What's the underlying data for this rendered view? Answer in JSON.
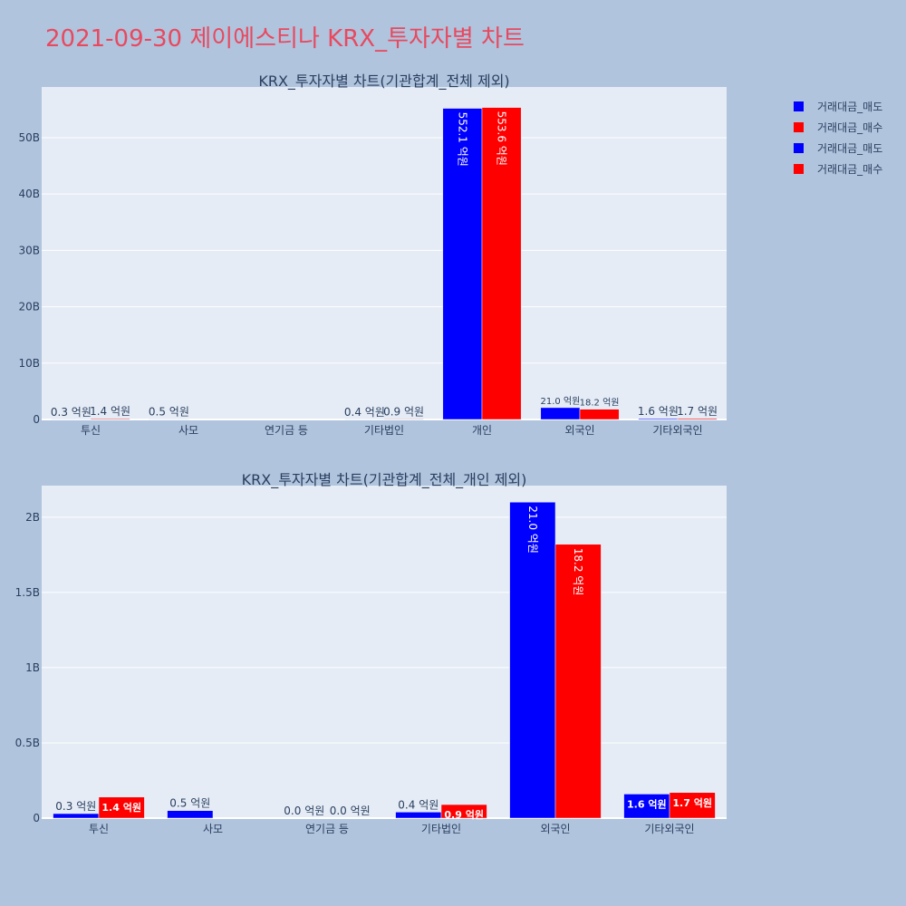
{
  "title": "2021-09-30 제이에스티나 KRX_투자자별 차트",
  "colors": {
    "sell": "#0000ff",
    "buy": "#ff0000",
    "plot_bg": "#e5ecf6",
    "paper_bg": "#b0c4de",
    "title": "#e8495f"
  },
  "legend": [
    {
      "label": "거래대금_매도",
      "color": "#0000ff"
    },
    {
      "label": "거래대금_매수",
      "color": "#ff0000"
    },
    {
      "label": "거래대금_매도",
      "color": "#0000ff"
    },
    {
      "label": "거래대금_매수",
      "color": "#ff0000"
    }
  ],
  "chart_data": [
    {
      "type": "bar",
      "title": "KRX_투자자별 차트(기관합계_전체 제외)",
      "categories": [
        "투신",
        "사모",
        "연기금 등",
        "기타법인",
        "개인",
        "외국인",
        "기타외국인"
      ],
      "ylim": [
        0,
        59000000000
      ],
      "yticks": [
        0,
        10000000000,
        20000000000,
        30000000000,
        40000000000,
        50000000000
      ],
      "ytick_labels": [
        "0",
        "10B",
        "20B",
        "30B",
        "40B",
        "50B"
      ],
      "grid": true,
      "series": [
        {
          "name": "거래대금_매도",
          "values": [
            30000000,
            50000000,
            null,
            40000000,
            55210000000,
            2100000000,
            160000000
          ],
          "labels": [
            "0.3 억원",
            "0.5 억원",
            "",
            "0.4 억원",
            "552.1 억원",
            "21.0 억원",
            "1.6 억원"
          ]
        },
        {
          "name": "거래대금_매수",
          "values": [
            140000000,
            null,
            null,
            90000000,
            55360000000,
            1820000000,
            170000000
          ],
          "labels": [
            "1.4 억원",
            "",
            "",
            "0.9 억원",
            "553.6 억원",
            "18.2 억원",
            "1.7 억원"
          ]
        }
      ]
    },
    {
      "type": "bar",
      "title": "KRX_투자자별 차트(기관합계_전체_개인 제외)",
      "categories": [
        "투신",
        "사모",
        "연기금 등",
        "기타법인",
        "외국인",
        "기타외국인"
      ],
      "ylim": [
        0,
        2210000000
      ],
      "yticks": [
        0,
        500000000,
        1000000000,
        1500000000,
        2000000000
      ],
      "ytick_labels": [
        "0",
        "0.5B",
        "1B",
        "1.5B",
        "2B"
      ],
      "grid": true,
      "series": [
        {
          "name": "거래대금_매도",
          "values": [
            30000000,
            50000000,
            0,
            40000000,
            2100000000,
            160000000
          ],
          "labels": [
            "0.3 억원",
            "0.5 억원",
            "0.0 억원",
            "0.4 억원",
            "21.0 억원",
            "1.6 억원"
          ]
        },
        {
          "name": "거래대금_매수",
          "values": [
            140000000,
            null,
            0,
            90000000,
            1820000000,
            170000000
          ],
          "labels": [
            "1.4 억원",
            "",
            "0.0 억원",
            "0.9 억원",
            "18.2 억원",
            "1.7 억원"
          ]
        }
      ]
    }
  ]
}
